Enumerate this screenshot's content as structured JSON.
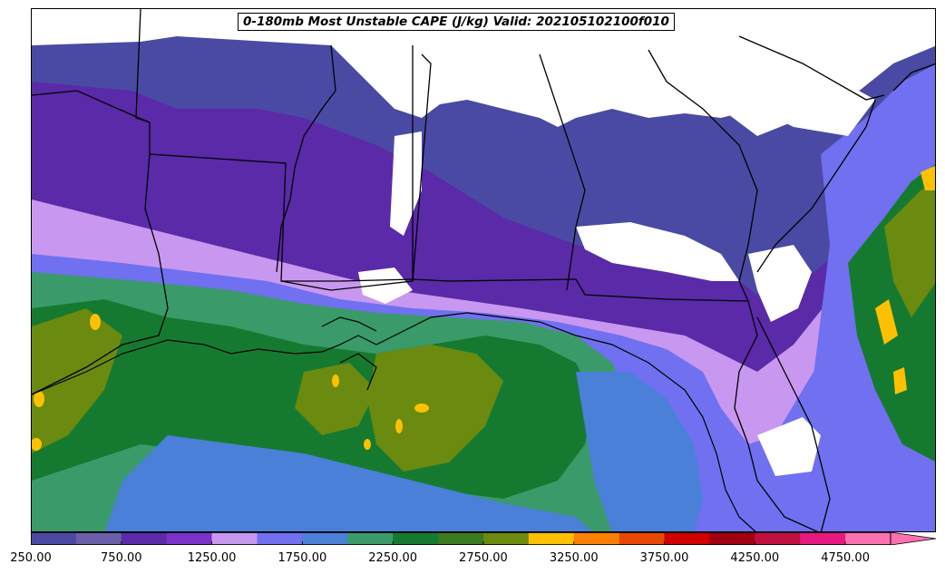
{
  "map": {
    "title": "0-180mb Most Unstable CAPE (J/kg) Valid: 202105102100f010"
  },
  "colorbar": {
    "tick_labels": [
      "250.00",
      "750.00",
      "1250.00",
      "1750.00",
      "2250.00",
      "2750.00",
      "3250.00",
      "3750.00",
      "4250.00",
      "4750.00"
    ],
    "levels": [
      250,
      500,
      750,
      1000,
      1250,
      1500,
      1750,
      2000,
      2250,
      2500,
      2750,
      3000,
      3250,
      3500,
      3750,
      4000,
      4250,
      4500,
      4750
    ],
    "colors": [
      "#4a4aa4",
      "#6a5fa8",
      "#5a2aa8",
      "#7a32c8",
      "#c898f0",
      "#7070f0",
      "#4a80d8",
      "#3a9a6a",
      "#157a30",
      "#3a7a20",
      "#6a8a10",
      "#ffc000",
      "#ff8000",
      "#e84800",
      "#d00000",
      "#a00010",
      "#c01040",
      "#e81880",
      "#ff70b0"
    ],
    "extend": "max"
  },
  "legend_colors": {
    "background_no_data": "#ffffff",
    "borders": "#000000"
  }
}
